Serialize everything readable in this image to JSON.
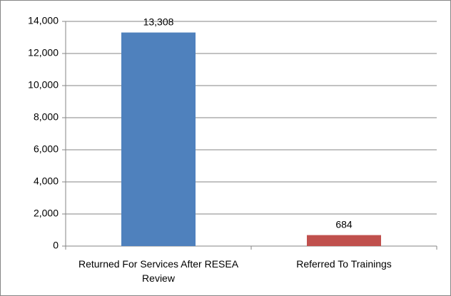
{
  "chart_data": {
    "type": "bar",
    "categories": [
      "Returned For Services After RESEA Review",
      "Referred To Trainings"
    ],
    "values": [
      13308,
      684
    ],
    "value_labels": [
      "13,308",
      "684"
    ],
    "colors": [
      "#4f81bd",
      "#c0504d"
    ],
    "ylim": [
      0,
      14000
    ],
    "yticks": [
      0,
      {
        "value": 2000,
        "label": "2,000"
      },
      {
        "value": 4000,
        "label": "4,000"
      },
      {
        "value": 6000,
        "label": "6,000"
      },
      {
        "value": 8000,
        "label": "8,000"
      },
      {
        "value": 10000,
        "label": "10,000"
      },
      {
        "value": 12000,
        "label": "12,000"
      },
      {
        "value": 14000,
        "label": "14,000"
      }
    ],
    "grid": true
  }
}
